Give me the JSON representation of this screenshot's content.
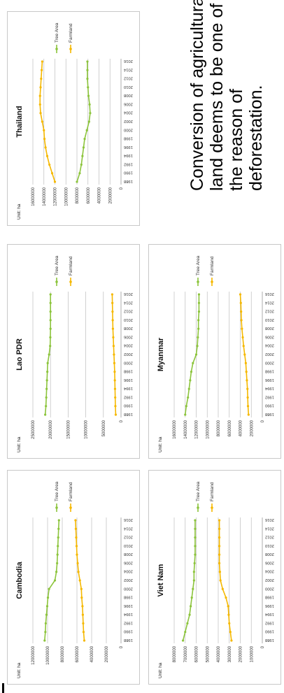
{
  "caption": {
    "lines": [
      "Conversion of agricultural",
      "land deems to be one of",
      "the reason of",
      "deforestation."
    ]
  },
  "chart_data": [
    {
      "type": "line",
      "title": "Cambodia",
      "unit_label": "Unit: ha",
      "ylim": [
        0,
        12000000
      ],
      "yticks": [
        "0",
        "2000000",
        "4000000",
        "6000000",
        "8000000",
        "10000000",
        "12000000"
      ],
      "x": [
        "1988",
        "1990",
        "1992",
        "1994",
        "1996",
        "1998",
        "2000",
        "2002",
        "2004",
        "2006",
        "2008",
        "2010",
        "2012",
        "2014",
        "2016"
      ],
      "series": [
        {
          "name": "Tree Area",
          "color": "#8cc43c",
          "values": [
            10400000,
            10300000,
            10250000,
            10150000,
            10050000,
            9950000,
            9800000,
            9000000,
            8800000,
            8700000,
            8650000,
            8600000,
            8550000,
            8500000,
            8450000
          ]
        },
        {
          "name": "Farmland",
          "color": "#f5b800",
          "values": [
            5000000,
            5100000,
            5150000,
            5200000,
            5250000,
            5350000,
            5400000,
            5600000,
            5800000,
            5900000,
            6000000,
            6050000,
            6100000,
            6150000,
            6200000
          ]
        }
      ],
      "grid": true,
      "legend": "right"
    },
    {
      "type": "line",
      "title": "Lao PDR",
      "unit_label": "Unit: ha",
      "ylim": [
        0,
        25000000
      ],
      "yticks": [
        "0",
        "5000000",
        "10000000",
        "15000000",
        "20000000",
        "25000000"
      ],
      "x": [
        "1988",
        "1990",
        "1992",
        "1994",
        "1996",
        "1998",
        "2000",
        "2002",
        "2004",
        "2006",
        "2008",
        "2010",
        "2012",
        "2014",
        "2016"
      ],
      "series": [
        {
          "name": "Tree Area",
          "color": "#8cc43c",
          "values": [
            21500000,
            21300000,
            21200000,
            21100000,
            21000000,
            20900000,
            20800000,
            20400000,
            20100000,
            20050000,
            20000000,
            20000000,
            20000000,
            20000000,
            20000000
          ]
        },
        {
          "name": "Farmland",
          "color": "#f5b800",
          "values": [
            1500000,
            1600000,
            1650000,
            1700000,
            1750000,
            1800000,
            1900000,
            2000000,
            2100000,
            2200000,
            2300000,
            2350000,
            2400000,
            2450000,
            2500000
          ]
        }
      ],
      "grid": true,
      "legend": "right"
    },
    {
      "type": "line",
      "title": "Thailand",
      "unit_label": "Unit: ha",
      "ylim": [
        0,
        16000000
      ],
      "yticks": [
        "0",
        "2000000",
        "4000000",
        "6000000",
        "8000000",
        "10000000",
        "12000000",
        "14000000",
        "16000000"
      ],
      "x": [
        "1988",
        "1990",
        "1992",
        "1994",
        "1996",
        "1998",
        "2000",
        "2002",
        "2004",
        "2006",
        "2008",
        "2010",
        "2012",
        "2014",
        "2016"
      ],
      "series": [
        {
          "name": "Tree Area",
          "color": "#8cc43c",
          "values": [
            8000000,
            7500000,
            7200000,
            7000000,
            6800000,
            6600000,
            6200000,
            5800000,
            5600000,
            5700000,
            5900000,
            6000000,
            6100000,
            6100000,
            6100000
          ]
        },
        {
          "name": "Farmland",
          "color": "#f5b800",
          "values": [
            12000000,
            12500000,
            13000000,
            13400000,
            13700000,
            13900000,
            14000000,
            14300000,
            14600000,
            14700000,
            14700000,
            14600000,
            14500000,
            14400000,
            14300000
          ]
        }
      ],
      "grid": true,
      "legend": "right"
    },
    {
      "type": "line",
      "title": "Viet Nam",
      "unit_label": "Unit: ha",
      "ylim": [
        0,
        8000000
      ],
      "yticks": [
        "0",
        "1000000",
        "2000000",
        "3000000",
        "4000000",
        "5000000",
        "6000000",
        "7000000",
        "8000000"
      ],
      "x": [
        "1988",
        "1990",
        "1992",
        "1994",
        "1996",
        "1998",
        "2000",
        "2002",
        "2004",
        "2006",
        "2008",
        "2010",
        "2012",
        "2014",
        "2016"
      ],
      "series": [
        {
          "name": "Tree Area",
          "color": "#8cc43c",
          "values": [
            7200000,
            7000000,
            6800000,
            6600000,
            6500000,
            6400000,
            6300000,
            6200000,
            6200000,
            6150000,
            6100000,
            6100000,
            6100000,
            6100000,
            6100000
          ]
        },
        {
          "name": "Farmland",
          "color": "#f5b800",
          "values": [
            2800000,
            2900000,
            3000000,
            3050000,
            3100000,
            3300000,
            3600000,
            3800000,
            3850000,
            3900000,
            3900000,
            3900000,
            3900000,
            3900000,
            3900000
          ]
        }
      ],
      "grid": true,
      "legend": "right"
    },
    {
      "type": "line",
      "title": "Myanmar",
      "unit_label": "Unit: ha",
      "ylim": [
        0,
        16000000
      ],
      "yticks": [
        "0",
        "2000000",
        "4000000",
        "6000000",
        "8000000",
        "10000000",
        "12000000",
        "14000000",
        "16000000"
      ],
      "x": [
        "1988",
        "1990",
        "1992",
        "1994",
        "1996",
        "1998",
        "2000",
        "2002",
        "2004",
        "2006",
        "2008",
        "2010",
        "2012",
        "2014",
        "2016"
      ],
      "series": [
        {
          "name": "Tree Area",
          "color": "#8cc43c",
          "values": [
            14000000,
            13800000,
            13500000,
            13300000,
            13100000,
            12900000,
            12600000,
            12000000,
            11800000,
            11700000,
            11600000,
            11600000,
            11500000,
            11500000,
            11500000
          ]
        },
        {
          "name": "Farmland",
          "color": "#f5b800",
          "values": [
            2500000,
            2600000,
            2650000,
            2700000,
            2800000,
            2900000,
            3000000,
            3200000,
            3400000,
            3550000,
            3700000,
            3800000,
            3850000,
            3900000,
            4000000
          ]
        }
      ],
      "grid": true,
      "legend": "right"
    }
  ]
}
